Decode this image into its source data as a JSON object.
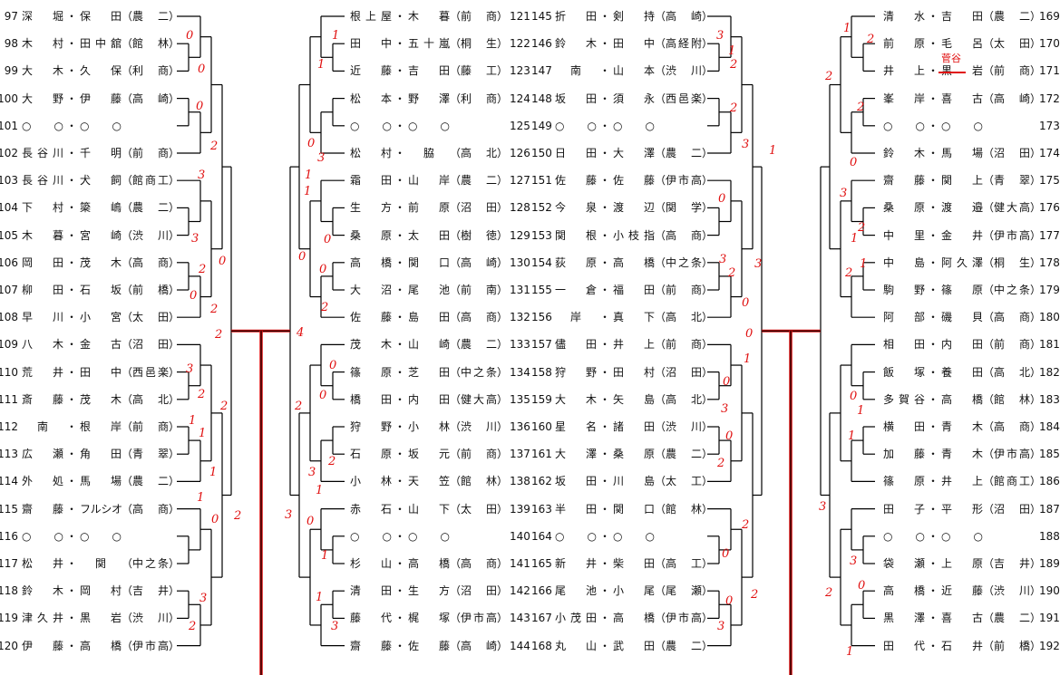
{
  "columns": [
    {
      "id": "left",
      "entries": [
        {
          "no": "97",
          "a": "深堀",
          "b": "保田",
          "school": "農二"
        },
        {
          "no": "98",
          "a": "木村",
          "b": "田中舘",
          "school": "館林"
        },
        {
          "no": "99",
          "a": "大木",
          "b": "久保",
          "school": "利商"
        },
        {
          "no": "100",
          "a": "大野",
          "b": "伊藤",
          "school": "高崎"
        },
        {
          "no": "101",
          "a": "○○",
          "b": "○○",
          "school": ""
        },
        {
          "no": "102",
          "a": "長谷川",
          "b": "千明",
          "school": "前商"
        },
        {
          "no": "103",
          "a": "長谷川",
          "b": "犬飼",
          "school": "館商工"
        },
        {
          "no": "104",
          "a": "下村",
          "b": "簗嶋",
          "school": "農二"
        },
        {
          "no": "105",
          "a": "木暮",
          "b": "宮崎",
          "school": "渋川"
        },
        {
          "no": "106",
          "a": "岡田",
          "b": "茂木",
          "school": "高商"
        },
        {
          "no": "107",
          "a": "柳田",
          "b": "石坂",
          "school": "前橋"
        },
        {
          "no": "108",
          "a": "早川",
          "b": "小宮",
          "school": "太田"
        },
        {
          "no": "109",
          "a": "八木",
          "b": "金古",
          "school": "沼田"
        },
        {
          "no": "110",
          "a": "荒井",
          "b": "田中",
          "school": "西邑楽"
        },
        {
          "no": "111",
          "a": "斎藤",
          "b": "茂木",
          "school": "高北"
        },
        {
          "no": "112",
          "a": "南",
          "b": "根岸",
          "school": "前商"
        },
        {
          "no": "113",
          "a": "広瀬",
          "b": "角田",
          "school": "青翠"
        },
        {
          "no": "114",
          "a": "外処",
          "b": "馬場",
          "school": "農二"
        },
        {
          "no": "115",
          "a": "齋藤",
          "b": "フルシオ",
          "school": "高商"
        },
        {
          "no": "116",
          "a": "○○",
          "b": "○○",
          "school": ""
        },
        {
          "no": "117",
          "a": "松井",
          "b": "関",
          "school": "中之条"
        },
        {
          "no": "118",
          "a": "鈴木",
          "b": "岡村",
          "school": "吉井"
        },
        {
          "no": "119",
          "a": "津久井",
          "b": "黒岩",
          "school": "渋川"
        },
        {
          "no": "120",
          "a": "伊藤",
          "b": "高橋",
          "school": "伊市高"
        }
      ]
    },
    {
      "id": "mid-left",
      "entries": [
        {
          "no": "121",
          "a": "根上屋",
          "b": "木暮",
          "school": "前商"
        },
        {
          "no": "122",
          "a": "田中",
          "b": "五十嵐",
          "school": "桐生"
        },
        {
          "no": "123",
          "a": "近藤",
          "b": "吉田",
          "school": "藤工"
        },
        {
          "no": "124",
          "a": "松本",
          "b": "野澤",
          "school": "利商"
        },
        {
          "no": "125",
          "a": "○○",
          "b": "○○",
          "school": ""
        },
        {
          "no": "126",
          "a": "松村",
          "b": "脇",
          "school": "高北"
        },
        {
          "no": "127",
          "a": "霜田",
          "b": "山岸",
          "school": "農二"
        },
        {
          "no": "128",
          "a": "生方",
          "b": "前原",
          "school": "沼田"
        },
        {
          "no": "129",
          "a": "桑原",
          "b": "太田",
          "school": "樹徳"
        },
        {
          "no": "130",
          "a": "高橋",
          "b": "関口",
          "school": "高崎"
        },
        {
          "no": "131",
          "a": "大沼",
          "b": "尾池",
          "school": "前南"
        },
        {
          "no": "132",
          "a": "佐藤",
          "b": "島田",
          "school": "高商"
        },
        {
          "no": "133",
          "a": "茂木",
          "b": "山崎",
          "school": "農二"
        },
        {
          "no": "134",
          "a": "篠原",
          "b": "芝田",
          "school": "中之条"
        },
        {
          "no": "135",
          "a": "橋田",
          "b": "内田",
          "school": "健大高"
        },
        {
          "no": "136",
          "a": "狩野",
          "b": "小林",
          "school": "渋川"
        },
        {
          "no": "137",
          "a": "石原",
          "b": "坂元",
          "school": "前商"
        },
        {
          "no": "138",
          "a": "小林",
          "b": "天笠",
          "school": "館林"
        },
        {
          "no": "139",
          "a": "赤石",
          "b": "山下",
          "school": "太田"
        },
        {
          "no": "140",
          "a": "○○",
          "b": "○○",
          "school": ""
        },
        {
          "no": "141",
          "a": "杉山",
          "b": "高橋",
          "school": "高商"
        },
        {
          "no": "142",
          "a": "清田",
          "b": "生方",
          "school": "沼田"
        },
        {
          "no": "143",
          "a": "藤代",
          "b": "梶塚",
          "school": "伊市高"
        },
        {
          "no": "144",
          "a": "齋藤",
          "b": "佐藤",
          "school": "高崎"
        }
      ]
    },
    {
      "id": "mid-right",
      "entries": [
        {
          "no": "145",
          "a": "折田",
          "b": "剣持",
          "school": "高崎"
        },
        {
          "no": "146",
          "a": "鈴木",
          "b": "田中",
          "school": "高経附"
        },
        {
          "no": "147",
          "a": "南",
          "b": "山本",
          "school": "渋川"
        },
        {
          "no": "148",
          "a": "坂田",
          "b": "須永",
          "school": "西邑楽"
        },
        {
          "no": "149",
          "a": "○○",
          "b": "○○",
          "school": ""
        },
        {
          "no": "150",
          "a": "日田",
          "b": "大澤",
          "school": "農二"
        },
        {
          "no": "151",
          "a": "佐藤",
          "b": "佐藤",
          "school": "伊市高"
        },
        {
          "no": "152",
          "a": "今泉",
          "b": "渡辺",
          "school": "関学"
        },
        {
          "no": "153",
          "a": "関根",
          "b": "小枝指",
          "school": "高商"
        },
        {
          "no": "154",
          "a": "荻原",
          "b": "高橋",
          "school": "中之条"
        },
        {
          "no": "155",
          "a": "一倉",
          "b": "福田",
          "school": "前商"
        },
        {
          "no": "156",
          "a": "岸",
          "b": "真下",
          "school": "高北"
        },
        {
          "no": "157",
          "a": "儘田",
          "b": "井上",
          "school": "前商"
        },
        {
          "no": "158",
          "a": "狩野",
          "b": "田村",
          "school": "沼田"
        },
        {
          "no": "159",
          "a": "大木",
          "b": "矢島",
          "school": "高北"
        },
        {
          "no": "160",
          "a": "星名",
          "b": "諸田",
          "school": "渋川"
        },
        {
          "no": "161",
          "a": "大澤",
          "b": "桑原",
          "school": "農二"
        },
        {
          "no": "162",
          "a": "坂田",
          "b": "川島",
          "school": "太工"
        },
        {
          "no": "163",
          "a": "半田",
          "b": "関口",
          "school": "館林"
        },
        {
          "no": "164",
          "a": "○○",
          "b": "○○",
          "school": ""
        },
        {
          "no": "165",
          "a": "新井",
          "b": "柴田",
          "school": "高工"
        },
        {
          "no": "166",
          "a": "尾池",
          "b": "小尾",
          "school": "尾瀬"
        },
        {
          "no": "167",
          "a": "小茂田",
          "b": "高橋",
          "school": "伊市高"
        },
        {
          "no": "168",
          "a": "丸山",
          "b": "武田",
          "school": "農二"
        }
      ]
    },
    {
      "id": "right",
      "entries": [
        {
          "no": "169",
          "a": "清水",
          "b": "吉田",
          "school": "農二"
        },
        {
          "no": "170",
          "a": "前原",
          "b": "毛呂",
          "school": "太田"
        },
        {
          "no": "171",
          "a": "井上",
          "b": "黒岩",
          "school": "前商"
        },
        {
          "no": "172",
          "a": "峯岸",
          "b": "喜古",
          "school": "高崎"
        },
        {
          "no": "173",
          "a": "○○",
          "b": "○○",
          "school": ""
        },
        {
          "no": "174",
          "a": "鈴木",
          "b": "馬場",
          "school": "沼田"
        },
        {
          "no": "175",
          "a": "齋藤",
          "b": "関上",
          "school": "青翠"
        },
        {
          "no": "176",
          "a": "桑原",
          "b": "渡邉",
          "school": "健大高"
        },
        {
          "no": "177",
          "a": "中里",
          "b": "金井",
          "school": "伊市高"
        },
        {
          "no": "178",
          "a": "中島",
          "b": "阿久澤",
          "school": "桐生"
        },
        {
          "no": "179",
          "a": "駒野",
          "b": "篠原",
          "school": "中之条"
        },
        {
          "no": "180",
          "a": "阿部",
          "b": "磯貝",
          "school": "高商"
        },
        {
          "no": "181",
          "a": "相田",
          "b": "内田",
          "school": "前商"
        },
        {
          "no": "182",
          "a": "飯塚",
          "b": "養田",
          "school": "高北"
        },
        {
          "no": "183",
          "a": "多賀谷",
          "b": "高橋",
          "school": "館林"
        },
        {
          "no": "184",
          "a": "横田",
          "b": "青木",
          "school": "高商"
        },
        {
          "no": "185",
          "a": "加藤",
          "b": "青木",
          "school": "伊市高"
        },
        {
          "no": "186",
          "a": "篠原",
          "b": "井上",
          "school": "館商工"
        },
        {
          "no": "187",
          "a": "田子",
          "b": "平形",
          "school": "沼田"
        },
        {
          "no": "188",
          "a": "○○",
          "b": "○○",
          "school": ""
        },
        {
          "no": "189",
          "a": "袋瀬",
          "b": "上原",
          "school": "吉井"
        },
        {
          "no": "190",
          "a": "高橋",
          "b": "近藤",
          "school": "渋川"
        },
        {
          "no": "191",
          "a": "黒澤",
          "b": "喜古",
          "school": "農二"
        },
        {
          "no": "192",
          "a": "田代",
          "b": "石井",
          "school": "前橋"
        }
      ]
    }
  ],
  "separator": "・",
  "handwritten": {
    "note": "菅谷",
    "color": "#e01010",
    "scores": [
      "0",
      "0",
      "0",
      "2",
      "3",
      "3",
      "0",
      "2",
      "0",
      "2",
      "2",
      "3",
      "2",
      "2",
      "1",
      "1",
      "1",
      "1",
      "0",
      "2",
      "3",
      "2",
      "1",
      "1",
      "0",
      "3",
      "1",
      "1",
      "0",
      "0",
      "0",
      "2",
      "4",
      "0",
      "0",
      "2",
      "2",
      "3",
      "1",
      "3",
      "0",
      "1",
      "1",
      "3",
      "3",
      "1",
      "2",
      "2",
      "3",
      "1",
      "0",
      "3",
      "3",
      "2",
      "0",
      "0",
      "1",
      "0",
      "3",
      "0",
      "2",
      "2",
      "0",
      "2",
      "0",
      "3",
      "1",
      "2",
      "2",
      "2",
      "0",
      "3",
      "2",
      "1",
      "1",
      "2",
      "0",
      "1",
      "1",
      "3",
      "3",
      "0",
      "2",
      "1"
    ]
  }
}
